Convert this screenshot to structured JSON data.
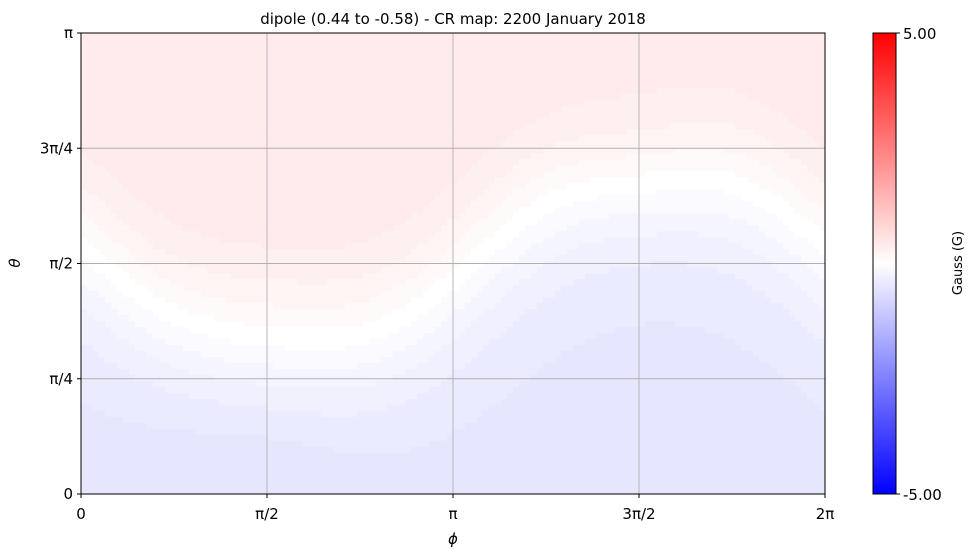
{
  "chart_data": {
    "type": "heatmap",
    "title": "dipole (0.44 to -0.58) - CR map: 2200 January 2018",
    "xlabel": "ϕ",
    "ylabel": "θ",
    "xlim": [
      0,
      6.2832
    ],
    "ylim": [
      0,
      3.1416
    ],
    "x_ticks": [
      {
        "value": 0,
        "label": "0"
      },
      {
        "value": 1.5708,
        "label": "π/2"
      },
      {
        "value": 3.1416,
        "label": "π"
      },
      {
        "value": 4.7124,
        "label": "3π/2"
      },
      {
        "value": 6.2832,
        "label": "2π"
      }
    ],
    "y_ticks": [
      {
        "value": 0,
        "label": "0"
      },
      {
        "value": 0.7854,
        "label": "π/4"
      },
      {
        "value": 1.5708,
        "label": "π/2"
      },
      {
        "value": 2.3562,
        "label": "3π/4"
      },
      {
        "value": 3.1416,
        "label": "π"
      }
    ],
    "grid": true,
    "field_model": {
      "max": 0.44,
      "min": -0.58,
      "positive_peak_phi": 4.75,
      "positive_peak_theta": 2.36,
      "negative_peak_phi": 1.6,
      "negative_peak_theta": 0.6
    },
    "colorbar": {
      "label": "Gauss (G)",
      "min": -5.0,
      "max": 5.0,
      "min_label": "-5.00",
      "max_label": "5.00",
      "colormap": "bwr",
      "low_color": "#0000ff",
      "mid_color": "#ffffff",
      "high_color": "#ff0000"
    }
  }
}
